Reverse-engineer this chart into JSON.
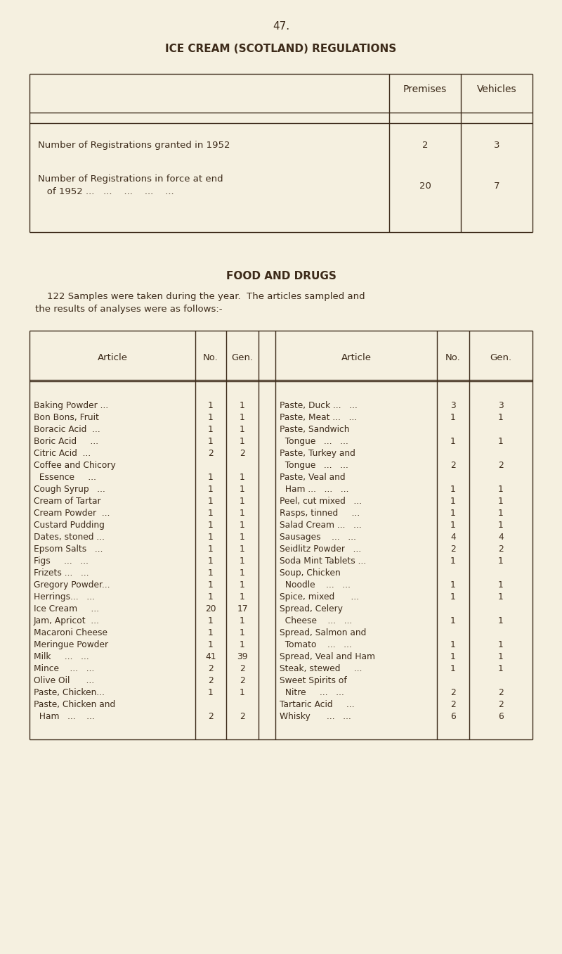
{
  "bg_color": "#f5f0e0",
  "text_color": "#3d2b1a",
  "page_number": "47.",
  "title": "ICE CREAM (SCOTLAND) REGULATIONS",
  "section_title": "FOOD AND DRUGS",
  "intro_line1": "    122 Samples were taken during the year.  The articles sampled and",
  "intro_line2": "the results of analyses were as follows:-",
  "table2_left": [
    [
      "Baking Powder ...",
      "1",
      "1"
    ],
    [
      "Bon Bons, Fruit",
      "1",
      "1"
    ],
    [
      "Boracic Acid  ...",
      "1",
      "1"
    ],
    [
      "Boric Acid     ...",
      "1",
      "1"
    ],
    [
      "Citric Acid  ...",
      "2",
      "2"
    ],
    [
      "Coffee and Chicory",
      "",
      ""
    ],
    [
      "  Essence     ...",
      "1",
      "1"
    ],
    [
      "Cough Syrup   ...",
      "1",
      "1"
    ],
    [
      "Cream of Tartar",
      "1",
      "1"
    ],
    [
      "Cream Powder  ...",
      "1",
      "1"
    ],
    [
      "Custard Pudding",
      "1",
      "1"
    ],
    [
      "Dates, stoned ...",
      "1",
      "1"
    ],
    [
      "Epsom Salts   ...",
      "1",
      "1"
    ],
    [
      "Figs     ...   ...",
      "1",
      "1"
    ],
    [
      "Frizets ...   ...",
      "1",
      "1"
    ],
    [
      "Gregory Powder...",
      "1",
      "1"
    ],
    [
      "Herrings...   ...",
      "1",
      "1"
    ],
    [
      "Ice Cream     ...",
      "20",
      "17"
    ],
    [
      "Jam, Apricot  ...",
      "1",
      "1"
    ],
    [
      "Macaroni Cheese",
      "1",
      "1"
    ],
    [
      "Meringue Powder",
      "1",
      "1"
    ],
    [
      "Milk     ...   ...",
      "41",
      "39"
    ],
    [
      "Mince    ...   ...",
      "2",
      "2"
    ],
    [
      "Olive Oil      ...",
      "2",
      "2"
    ],
    [
      "Paste, Chicken...",
      "1",
      "1"
    ],
    [
      "Paste, Chicken and",
      "",
      ""
    ],
    [
      "  Ham   ...    ...",
      "2",
      "2"
    ]
  ],
  "table2_right": [
    [
      "Paste, Duck ...   ...",
      "3",
      "3"
    ],
    [
      "Paste, Meat ...   ...",
      "1",
      "1"
    ],
    [
      "Paste, Sandwich",
      "",
      ""
    ],
    [
      "  Tongue   ...   ...",
      "1",
      "1"
    ],
    [
      "Paste, Turkey and",
      "",
      ""
    ],
    [
      "  Tongue   ...   ...",
      "2",
      "2"
    ],
    [
      "Paste, Veal and",
      "",
      ""
    ],
    [
      "  Ham ...   ...   ...",
      "1",
      "1"
    ],
    [
      "Peel, cut mixed   ...",
      "1",
      "1"
    ],
    [
      "Rasps, tinned     ...",
      "1",
      "1"
    ],
    [
      "Salad Cream ...   ...",
      "1",
      "1"
    ],
    [
      "Sausages    ...   ...",
      "4",
      "4"
    ],
    [
      "Seidlitz Powder   ...",
      "2",
      "2"
    ],
    [
      "Soda Mint Tablets ...",
      "1",
      "1"
    ],
    [
      "Soup, Chicken",
      "",
      ""
    ],
    [
      "  Noodle    ...   ...",
      "1",
      "1"
    ],
    [
      "Spice, mixed      ...",
      "1",
      "1"
    ],
    [
      "Spread, Celery",
      "",
      ""
    ],
    [
      "  Cheese    ...   ...",
      "1",
      "1"
    ],
    [
      "Spread, Salmon and",
      "",
      ""
    ],
    [
      "  Tomato    ...   ...",
      "1",
      "1"
    ],
    [
      "Spread, Veal and Ham",
      "1",
      "1"
    ],
    [
      "Steak, stewed     ...",
      "1",
      "1"
    ],
    [
      "Sweet Spirits of",
      "",
      ""
    ],
    [
      "  Nitre     ...   ...",
      "2",
      "2"
    ],
    [
      "Tartaric Acid     ...",
      "2",
      "2"
    ],
    [
      "Whisky      ...   ...",
      "6",
      "6"
    ]
  ]
}
